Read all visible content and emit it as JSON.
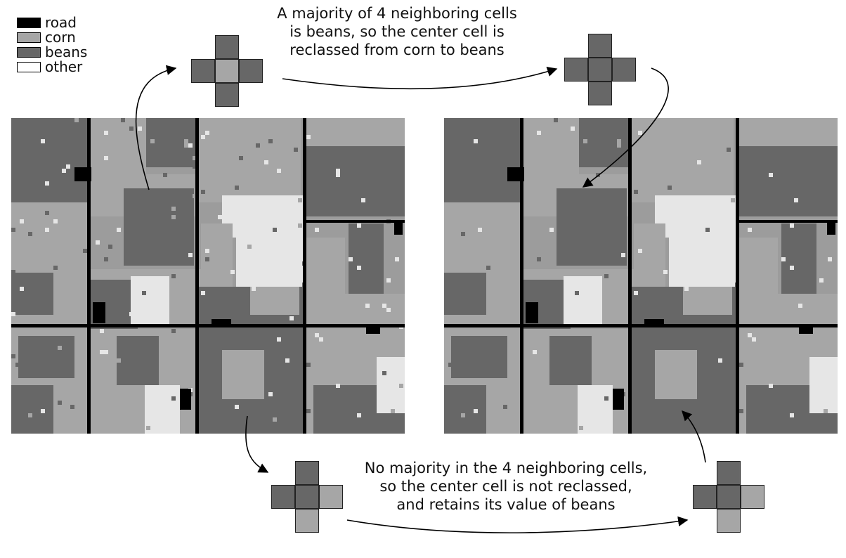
{
  "legend": [
    {
      "label": "road",
      "color": "#000000"
    },
    {
      "label": "corn",
      "color": "#a6a6a6"
    },
    {
      "label": "beans",
      "color": "#676767"
    },
    {
      "label": "other",
      "color": "#ffffff"
    }
  ],
  "captions": {
    "top": [
      "A majority of 4 neighboring cells",
      "is beans, so the center cell is",
      "reclassed from corn to beans"
    ],
    "bottom": [
      "No majority in the 4 neighboring cells,",
      "so the center cell is not reclassed,",
      "and retains its value of beans"
    ]
  },
  "colors": {
    "road": "#000000",
    "corn": "#a6a6a6",
    "beans": "#676767",
    "other": "#e6e6e6"
  },
  "crosses": {
    "top_before": {
      "top": "beans",
      "left": "beans",
      "center": "corn",
      "right": "beans",
      "bottom": "beans"
    },
    "top_after": {
      "top": "beans",
      "left": "beans",
      "center": "beans",
      "right": "beans",
      "bottom": "beans"
    },
    "bottom_before": {
      "top": "beans",
      "left": "beans",
      "center": "beans",
      "right": "corn",
      "bottom": "corn"
    },
    "bottom_after": {
      "top": "beans",
      "left": "beans",
      "center": "beans",
      "right": "corn",
      "bottom": "corn"
    }
  }
}
